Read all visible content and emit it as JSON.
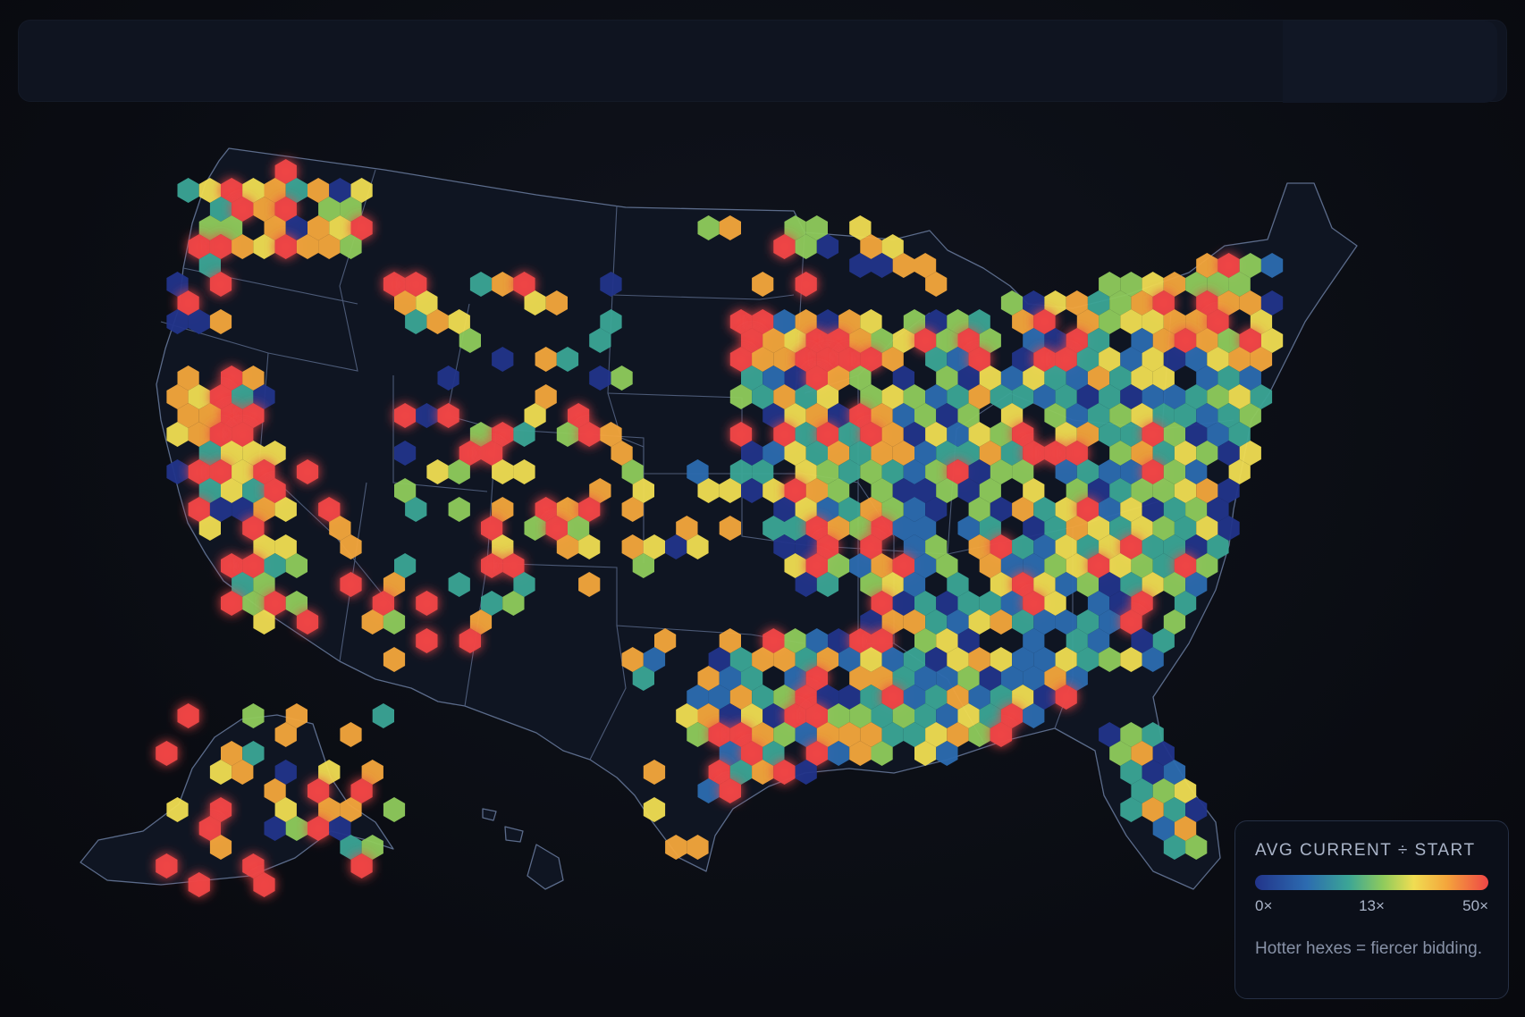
{
  "legend": {
    "title": "AVG CURRENT ÷ START",
    "min_label": "0×",
    "mid_label": "13×",
    "max_label": "50×",
    "note": "Hotter hexes = fiercer bidding.",
    "colors": [
      "#22348a",
      "#2c6bb0",
      "#3ba596",
      "#8fcb5c",
      "#f0dd52",
      "#f4a63c",
      "#ef4646"
    ]
  },
  "scale": {
    "min": 0,
    "mid": 13,
    "max": 50
  }
}
